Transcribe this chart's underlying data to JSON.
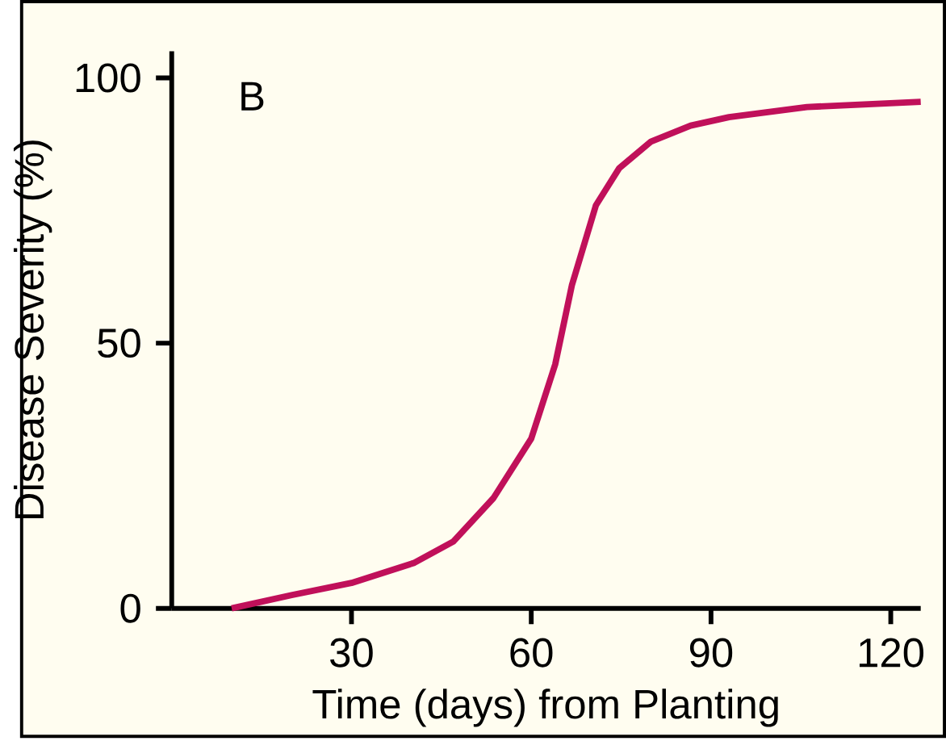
{
  "chart_data": {
    "type": "line",
    "xlabel": "Time (days) from Planting",
    "ylabel": "Disease Severity (%)",
    "annotations": [
      "B"
    ],
    "series": [
      {
        "color": "#c0105a",
        "x": [
          10,
          20,
          30,
          40.5,
          47,
          53.7,
          60,
          64,
          66.8,
          70.8,
          74.7,
          80,
          86.6,
          93,
          106,
          125
        ],
        "values": [
          0,
          2.5,
          4.8,
          8.6,
          12.6,
          20.8,
          32,
          46,
          61,
          76,
          83,
          88,
          91,
          92.6,
          94.5,
          95.5
        ]
      }
    ],
    "xlim": [
      0,
      125
    ],
    "ylim": [
      0,
      105
    ],
    "xticks": [
      30,
      60,
      90,
      120
    ],
    "yticks": [
      0,
      50,
      100
    ],
    "marker": "none",
    "line_style": "solid"
  }
}
